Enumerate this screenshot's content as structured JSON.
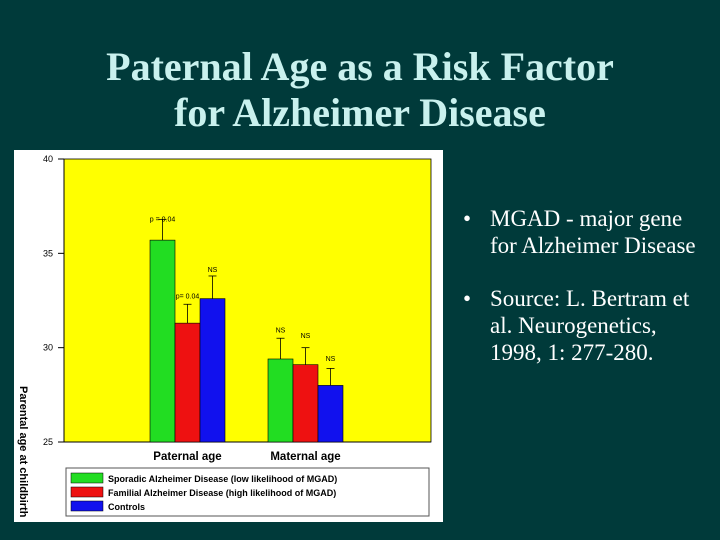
{
  "slide": {
    "title_line1": "Paternal Age as a Risk Factor",
    "title_line2": "for Alzheimer Disease",
    "bullets": [
      "MGAD - major gene for Alzheimer Disease",
      "Source: L. Bertram et al. Neurogenetics, 1998, 1: 277-280."
    ],
    "bullet_glyph": "•"
  },
  "chart_data": {
    "type": "bar",
    "title": "",
    "ylabel": "Parental age at childbirth",
    "xlabel": "",
    "ylim": [
      25,
      40
    ],
    "yticks": [
      25,
      30,
      35,
      40
    ],
    "categories": [
      "Paternal age",
      "Maternal age"
    ],
    "series": [
      {
        "name": "Sporadic Alzheimer Disease (low likelihood of MGAD)",
        "color": "#22dd22",
        "values": [
          35.7,
          29.4
        ],
        "errors": [
          1.1,
          1.1
        ]
      },
      {
        "name": "Familial Alzheimer Disease (high likelihood of MGAD)",
        "color": "#ee1111",
        "values": [
          31.3,
          29.1
        ],
        "errors": [
          1.0,
          0.9
        ]
      },
      {
        "name": "Controls",
        "color": "#1111ee",
        "values": [
          32.6,
          28.0
        ],
        "errors": [
          1.2,
          0.9
        ]
      }
    ],
    "annotations": [
      {
        "text": "p = 0.04",
        "category": 0,
        "series": 0,
        "value": 36.7
      },
      {
        "text": "NS",
        "category": 0,
        "series": 2,
        "value": 34.0
      },
      {
        "text": "p= 0.04",
        "category": 0,
        "series": 1,
        "value": 32.6
      },
      {
        "text": "NS",
        "category": 1,
        "series": 0,
        "value": 30.8
      },
      {
        "text": "NS",
        "category": 1,
        "series": 1,
        "value": 30.5
      },
      {
        "text": "NS",
        "category": 1,
        "series": 2,
        "value": 29.3
      }
    ],
    "plot_background": "#ffff00",
    "legend_position": "bottom"
  }
}
